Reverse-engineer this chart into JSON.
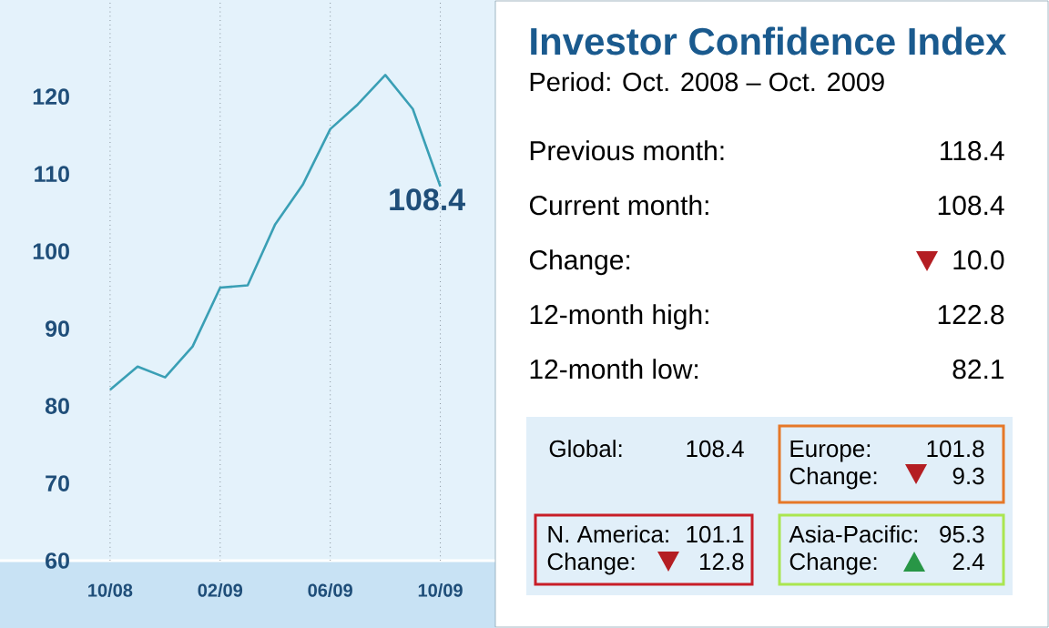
{
  "chart_data": [
    {
      "type": "line",
      "x": [
        "2008-10",
        "2008-11",
        "2008-12",
        "2009-01",
        "2009-02",
        "2009-03",
        "2009-04",
        "2009-05",
        "2009-06",
        "2009-07",
        "2009-08",
        "2009-09",
        "2009-10"
      ],
      "values": [
        82.1,
        85.1,
        83.7,
        87.7,
        95.3,
        95.6,
        103.5,
        108.6,
        115.8,
        119.0,
        122.8,
        118.4,
        108.4
      ],
      "value_labels": [
        null,
        null,
        null,
        null,
        null,
        null,
        null,
        null,
        null,
        null,
        null,
        null,
        "108.4"
      ],
      "color": "#3a9fb5",
      "xlim": [
        "2008-06",
        "2009-12"
      ],
      "xticks": [
        {
          "value": "2008-10",
          "label": "10/08"
        },
        {
          "value": "2009-02",
          "label": "02/09"
        },
        {
          "value": "2009-06",
          "label": "06/09"
        },
        {
          "value": "2009-10",
          "label": "10/09"
        }
      ],
      "ylim": [
        60,
        132.5
      ],
      "yticks": [
        60,
        70,
        80,
        90,
        100,
        110,
        120
      ],
      "grid": "x"
    },
    {
      "type": "other",
      "title": "Investor Confidence Index",
      "subtitle": "Period: Oct. 2008 – Oct. 2009",
      "annotations": [
        "Previous month:",
        "118.4",
        "Current month:",
        "108.4",
        "Change:",
        "10.0",
        "12-month high:",
        "122.8",
        "12-month low:",
        "82.1",
        "Global:",
        "108.4",
        "Europe:",
        "101.8",
        "Change:",
        "9.3",
        "N. America:",
        "101.1",
        "Change:",
        "12.8",
        "Asia-Pacific:",
        "95.3",
        "Change:",
        "2.4"
      ]
    }
  ]
}
